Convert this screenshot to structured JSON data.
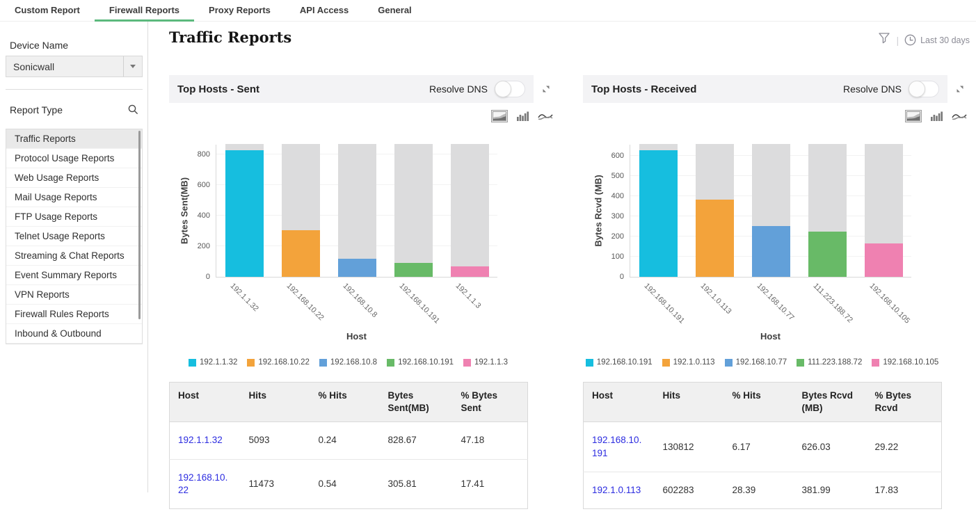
{
  "colors": {
    "accent_green": "#5bb97d",
    "link_blue": "#2b2be0",
    "bar_track": "#dcdcdd",
    "series_colors": [
      "#16bedf",
      "#f3a33b",
      "#62a0d9",
      "#68ba67",
      "#ef81b1"
    ]
  },
  "tabs": {
    "items": [
      {
        "label": "Custom Report",
        "active": false
      },
      {
        "label": "Firewall Reports",
        "active": true
      },
      {
        "label": "Proxy Reports",
        "active": false
      },
      {
        "label": "API Access",
        "active": false
      },
      {
        "label": "General",
        "active": false
      }
    ]
  },
  "sidebar": {
    "device_name_label": "Device Name",
    "device_value": "Sonicwall",
    "report_type_label": "Report Type",
    "report_types": [
      "Traffic Reports",
      "Protocol Usage Reports",
      "Web Usage Reports",
      "Mail Usage Reports",
      "FTP Usage Reports",
      "Telnet Usage Reports",
      "Streaming & Chat Reports",
      "Event Summary Reports",
      "VPN Reports",
      "Firewall Rules Reports",
      "Inbound & Outbound"
    ],
    "selected_report": "Traffic Reports"
  },
  "header": {
    "title": "Traffic Reports",
    "time_range": "Last 30 days"
  },
  "panels": [
    {
      "title": "Top Hosts - Sent",
      "resolve_dns_label": "Resolve DNS"
    },
    {
      "title": "Top Hosts - Received",
      "resolve_dns_label": "Resolve DNS"
    }
  ],
  "chart_data": [
    {
      "type": "bar",
      "title": "Top Hosts - Sent",
      "categories": [
        "192.1.1.32",
        "192.168.10.22",
        "192.168.10.8",
        "192.168.10.191",
        "192.1.1.3"
      ],
      "values": [
        828.67,
        305.81,
        118,
        90,
        68
      ],
      "xlabel": "Host",
      "ylabel": "Bytes Sent(MB)",
      "yticks": [
        0,
        200,
        400,
        600,
        800
      ],
      "ylim": [
        0,
        868
      ],
      "track_max": 868,
      "grid": true,
      "legend_position": "bottom",
      "legend": [
        "192.1.1.32",
        "192.168.10.22",
        "192.168.10.8",
        "192.168.10.191",
        "192.1.1.3"
      ]
    },
    {
      "type": "bar",
      "title": "Top Hosts - Received",
      "categories": [
        "192.168.10.191",
        "192.1.0.113",
        "192.168.10.77",
        "111.223.188.72",
        "192.168.10.105"
      ],
      "values": [
        626.03,
        381.99,
        250,
        225,
        166
      ],
      "xlabel": "Host",
      "ylabel": "Bytes Rcvd (MB)",
      "yticks": [
        0,
        100,
        200,
        300,
        400,
        500,
        600
      ],
      "ylim": [
        0,
        658
      ],
      "track_max": 658,
      "grid": true,
      "legend_position": "bottom",
      "legend": [
        "192.168.10.191",
        "192.1.0.113",
        "192.168.10.77",
        "111.223.188.72",
        "192.168.10.105"
      ]
    }
  ],
  "tables": [
    {
      "columns": [
        "Host",
        "Hits",
        "% Hits",
        "Bytes Sent(MB)",
        "% Bytes Sent"
      ],
      "rows": [
        [
          "192.1.1.32",
          "5093",
          "0.24",
          "828.67",
          "47.18"
        ],
        [
          "192.168.10.22",
          "11473",
          "0.54",
          "305.81",
          "17.41"
        ]
      ]
    },
    {
      "columns": [
        "Host",
        "Hits",
        "% Hits",
        "Bytes Rcvd (MB)",
        "% Bytes Rcvd"
      ],
      "rows": [
        [
          "192.168.10.191",
          "130812",
          "6.17",
          "626.03",
          "29.22"
        ],
        [
          "192.1.0.113",
          "602283",
          "28.39",
          "381.99",
          "17.83"
        ]
      ]
    }
  ]
}
